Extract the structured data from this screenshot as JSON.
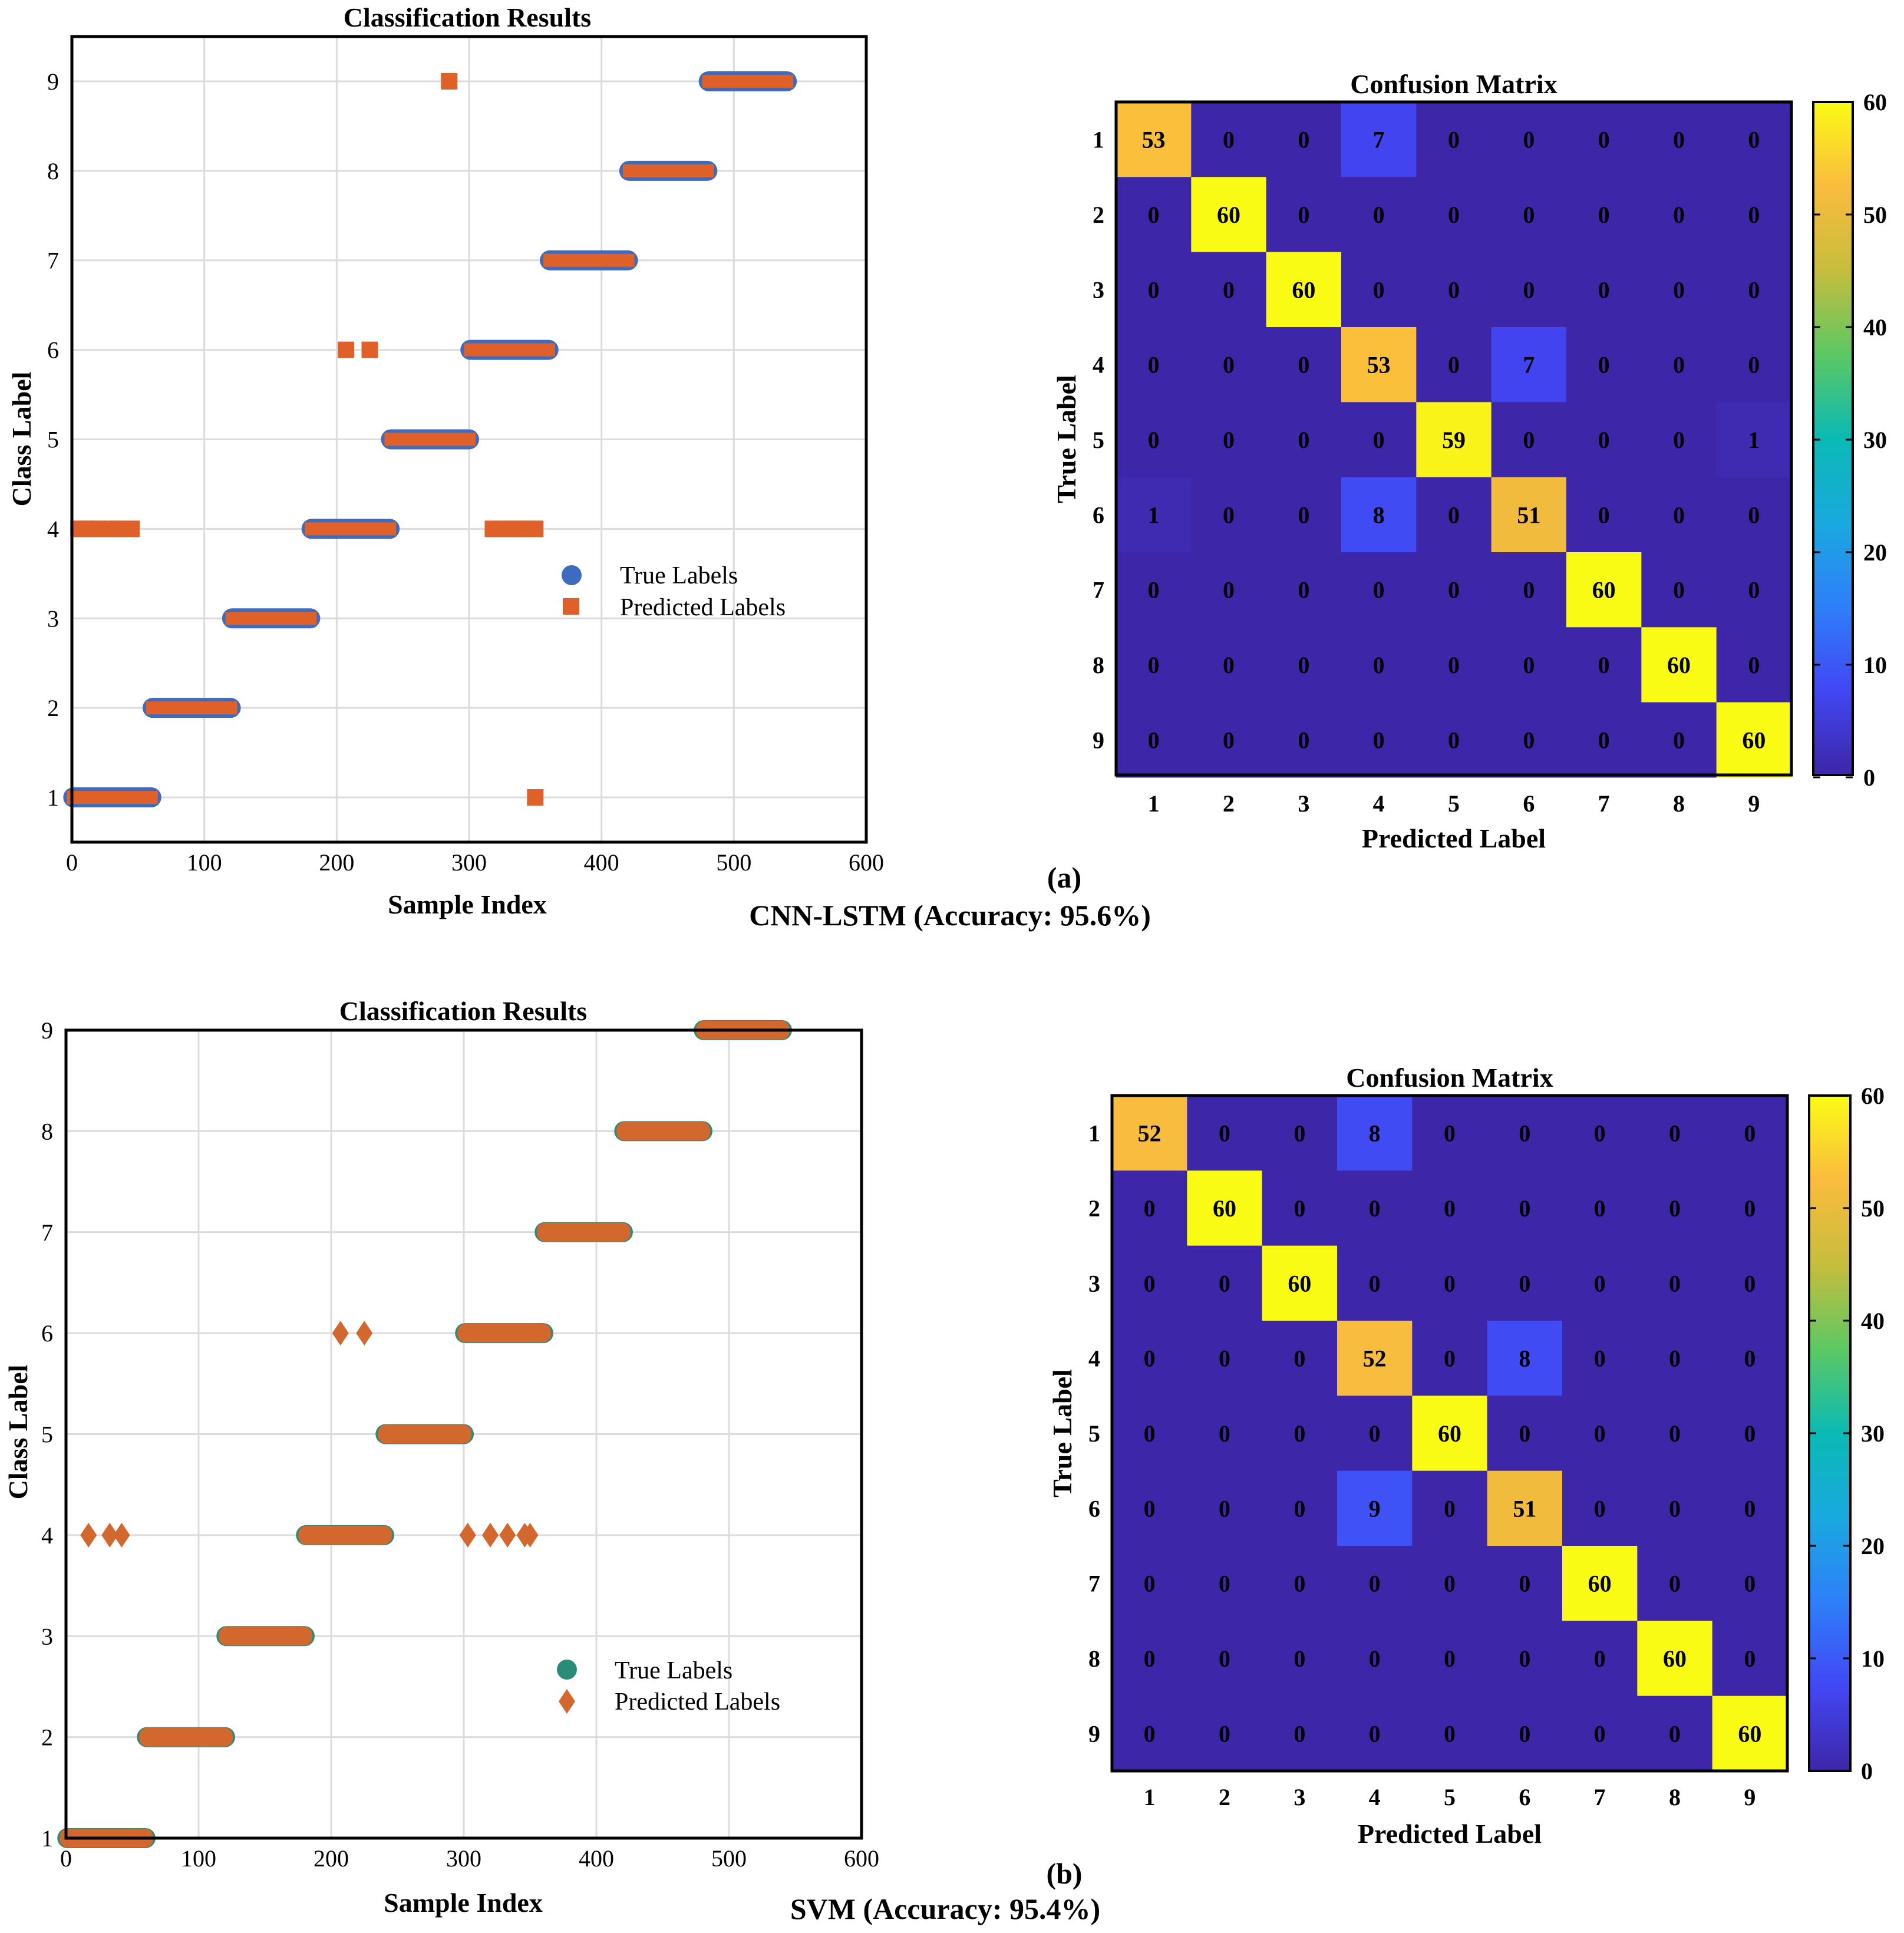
{
  "colors": {
    "true_a": "#3d6bbf",
    "pred_a": "#e0602a",
    "true_b": "#2a8c78",
    "pred_b": "#d2682e"
  },
  "panels": [
    {
      "label": "(a)",
      "caption": "CNN-LSTM (Accuracy: 95.6%)",
      "pred_marker": "square",
      "scatter": {
        "title": "Classification Results",
        "xlabel": "Sample Index",
        "ylabel": "Class Label",
        "xlim": [
          0,
          600
        ],
        "ylim": [
          0.5,
          9.5
        ],
        "xticks": [
          0,
          100,
          200,
          300,
          400,
          500,
          600
        ],
        "yticks": [
          1,
          2,
          3,
          4,
          5,
          6,
          7,
          8,
          9
        ],
        "legend": [
          "True Labels",
          "Predicted Labels"
        ]
      },
      "confusion": {
        "title": "Confusion Matrix",
        "xlabel": "Predicted Label",
        "ylabel": "True Label",
        "labels": [
          "1",
          "2",
          "3",
          "4",
          "5",
          "6",
          "7",
          "8",
          "9"
        ],
        "colorbar_ticks": [
          0,
          10,
          20,
          30,
          40,
          50,
          60
        ]
      }
    },
    {
      "label": "(b)",
      "caption": "SVM (Accuracy: 95.4%)",
      "pred_marker": "diamond",
      "scatter": {
        "title": "Classification Results",
        "xlabel": "Sample Index",
        "ylabel": "Class Label",
        "xlim": [
          0,
          600
        ],
        "ylim": [
          1,
          9
        ],
        "xticks": [
          0,
          100,
          200,
          300,
          400,
          500,
          600
        ],
        "yticks": [
          1,
          2,
          3,
          4,
          5,
          6,
          7,
          8,
          9
        ],
        "legend": [
          "True Labels",
          "Predicted Labels"
        ]
      },
      "confusion": {
        "title": "Confusion Matrix",
        "xlabel": "Predicted Label",
        "ylabel": "True Label",
        "labels": [
          "1",
          "2",
          "3",
          "4",
          "5",
          "6",
          "7",
          "8",
          "9"
        ],
        "colorbar_ticks": [
          0,
          10,
          20,
          30,
          40,
          50,
          60
        ]
      }
    }
  ],
  "chart_data": [
    {
      "type": "scatter",
      "title": "Classification Results",
      "xlabel": "Sample Index",
      "ylabel": "Class Label",
      "xlim": [
        0,
        600
      ],
      "ylim": [
        0.5,
        9.5
      ],
      "series": [
        {
          "name": "True Labels",
          "segments": [
            {
              "class": 1,
              "from": 1,
              "to": 60
            },
            {
              "class": 2,
              "from": 61,
              "to": 120
            },
            {
              "class": 3,
              "from": 121,
              "to": 180
            },
            {
              "class": 4,
              "from": 181,
              "to": 240
            },
            {
              "class": 5,
              "from": 241,
              "to": 300
            },
            {
              "class": 6,
              "from": 301,
              "to": 360
            },
            {
              "class": 7,
              "from": 361,
              "to": 420
            },
            {
              "class": 8,
              "from": 421,
              "to": 480
            },
            {
              "class": 9,
              "from": 481,
              "to": 540
            }
          ]
        },
        {
          "name": "Predicted Labels",
          "segments": [
            {
              "class": 1,
              "from": 1,
              "to": 60
            },
            {
              "class": 2,
              "from": 61,
              "to": 120
            },
            {
              "class": 3,
              "from": 121,
              "to": 180
            },
            {
              "class": 4,
              "from": 181,
              "to": 240
            },
            {
              "class": 5,
              "from": 241,
              "to": 300
            },
            {
              "class": 6,
              "from": 301,
              "to": 360
            },
            {
              "class": 7,
              "from": 361,
              "to": 420
            },
            {
              "class": 8,
              "from": 421,
              "to": 480
            },
            {
              "class": 9,
              "from": 481,
              "to": 540
            }
          ],
          "misclassified": [
            {
              "x": 5,
              "class": 4
            },
            {
              "x": 10,
              "class": 4
            },
            {
              "x": 15,
              "class": 4
            },
            {
              "x": 20,
              "class": 4
            },
            {
              "x": 30,
              "class": 4
            },
            {
              "x": 35,
              "class": 4
            },
            {
              "x": 45,
              "class": 4
            },
            {
              "x": 207,
              "class": 6
            },
            {
              "x": 225,
              "class": 6
            },
            {
              "x": 285,
              "class": 9
            },
            {
              "x": 318,
              "class": 4
            },
            {
              "x": 325,
              "class": 4
            },
            {
              "x": 332,
              "class": 4
            },
            {
              "x": 338,
              "class": 4
            },
            {
              "x": 344,
              "class": 4
            },
            {
              "x": 350,
              "class": 4
            },
            {
              "x": 350,
              "class": 1
            }
          ]
        }
      ]
    },
    {
      "type": "heatmap",
      "title": "Confusion Matrix",
      "xlabel": "Predicted Label",
      "ylabel": "True Label",
      "labels": [
        "1",
        "2",
        "3",
        "4",
        "5",
        "6",
        "7",
        "8",
        "9"
      ],
      "clim": [
        0,
        60
      ],
      "matrix": [
        [
          53,
          0,
          0,
          7,
          0,
          0,
          0,
          0,
          0
        ],
        [
          0,
          60,
          0,
          0,
          0,
          0,
          0,
          0,
          0
        ],
        [
          0,
          0,
          60,
          0,
          0,
          0,
          0,
          0,
          0
        ],
        [
          0,
          0,
          0,
          53,
          0,
          7,
          0,
          0,
          0
        ],
        [
          0,
          0,
          0,
          0,
          59,
          0,
          0,
          0,
          1
        ],
        [
          1,
          0,
          0,
          8,
          0,
          51,
          0,
          0,
          0
        ],
        [
          0,
          0,
          0,
          0,
          0,
          0,
          60,
          0,
          0
        ],
        [
          0,
          0,
          0,
          0,
          0,
          0,
          0,
          60,
          0
        ],
        [
          0,
          0,
          0,
          0,
          0,
          0,
          0,
          0,
          60
        ]
      ]
    },
    {
      "type": "scatter",
      "title": "Classification Results",
      "xlabel": "Sample Index",
      "ylabel": "Class Label",
      "xlim": [
        0,
        600
      ],
      "ylim": [
        1,
        9
      ],
      "series": [
        {
          "name": "True Labels",
          "segments": [
            {
              "class": 1,
              "from": 1,
              "to": 60
            },
            {
              "class": 2,
              "from": 61,
              "to": 120
            },
            {
              "class": 3,
              "from": 121,
              "to": 180
            },
            {
              "class": 4,
              "from": 181,
              "to": 240
            },
            {
              "class": 5,
              "from": 241,
              "to": 300
            },
            {
              "class": 6,
              "from": 301,
              "to": 360
            },
            {
              "class": 7,
              "from": 361,
              "to": 420
            },
            {
              "class": 8,
              "from": 421,
              "to": 480
            },
            {
              "class": 9,
              "from": 481,
              "to": 540
            }
          ]
        },
        {
          "name": "Predicted Labels",
          "segments": [
            {
              "class": 1,
              "from": 1,
              "to": 60
            },
            {
              "class": 2,
              "from": 61,
              "to": 120
            },
            {
              "class": 3,
              "from": 121,
              "to": 180
            },
            {
              "class": 4,
              "from": 181,
              "to": 240
            },
            {
              "class": 5,
              "from": 241,
              "to": 300
            },
            {
              "class": 6,
              "from": 301,
              "to": 360
            },
            {
              "class": 7,
              "from": 361,
              "to": 420
            },
            {
              "class": 8,
              "from": 421,
              "to": 480
            },
            {
              "class": 9,
              "from": 481,
              "to": 540
            }
          ],
          "misclassified": [
            {
              "x": 17,
              "class": 4
            },
            {
              "x": 33,
              "class": 4
            },
            {
              "x": 42,
              "class": 4
            },
            {
              "x": 207,
              "class": 6
            },
            {
              "x": 225,
              "class": 6
            },
            {
              "x": 303,
              "class": 4
            },
            {
              "x": 320,
              "class": 4
            },
            {
              "x": 333,
              "class": 4
            },
            {
              "x": 346,
              "class": 4
            },
            {
              "x": 350,
              "class": 4
            }
          ]
        }
      ]
    },
    {
      "type": "heatmap",
      "title": "Confusion Matrix",
      "xlabel": "Predicted Label",
      "ylabel": "True Label",
      "labels": [
        "1",
        "2",
        "3",
        "4",
        "5",
        "6",
        "7",
        "8",
        "9"
      ],
      "clim": [
        0,
        60
      ],
      "matrix": [
        [
          52,
          0,
          0,
          8,
          0,
          0,
          0,
          0,
          0
        ],
        [
          0,
          60,
          0,
          0,
          0,
          0,
          0,
          0,
          0
        ],
        [
          0,
          0,
          60,
          0,
          0,
          0,
          0,
          0,
          0
        ],
        [
          0,
          0,
          0,
          52,
          0,
          8,
          0,
          0,
          0
        ],
        [
          0,
          0,
          0,
          0,
          60,
          0,
          0,
          0,
          0
        ],
        [
          0,
          0,
          0,
          9,
          0,
          51,
          0,
          0,
          0
        ],
        [
          0,
          0,
          0,
          0,
          0,
          0,
          60,
          0,
          0
        ],
        [
          0,
          0,
          0,
          0,
          0,
          0,
          0,
          60,
          0
        ],
        [
          0,
          0,
          0,
          0,
          0,
          0,
          0,
          0,
          60
        ]
      ]
    }
  ]
}
